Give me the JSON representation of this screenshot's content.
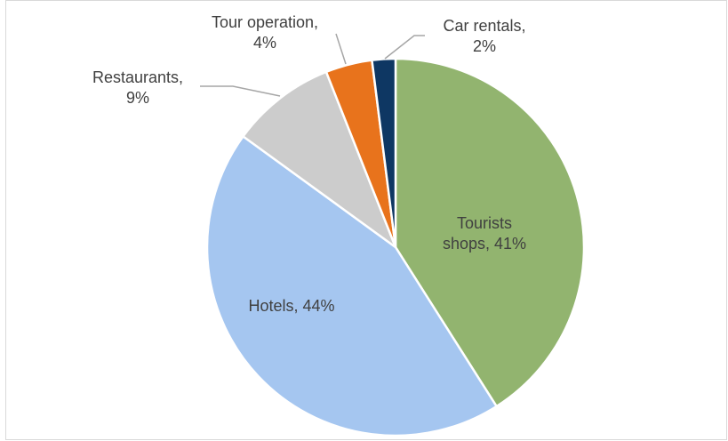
{
  "chart_data": {
    "type": "pie",
    "values": [
      41,
      44,
      9,
      4,
      2
    ],
    "value_labels": [
      "Tourists shops, 41%",
      "Hotels, 44%",
      "Restaurants, 9%",
      "Tour operation, 4%",
      "Car rentals, 2%"
    ],
    "colors": [
      "#92b46f",
      "#a5c6f0",
      "#cccccc",
      "#e8731c",
      "#0e3763"
    ],
    "start_angle": 0,
    "direction": "clockwise"
  }
}
